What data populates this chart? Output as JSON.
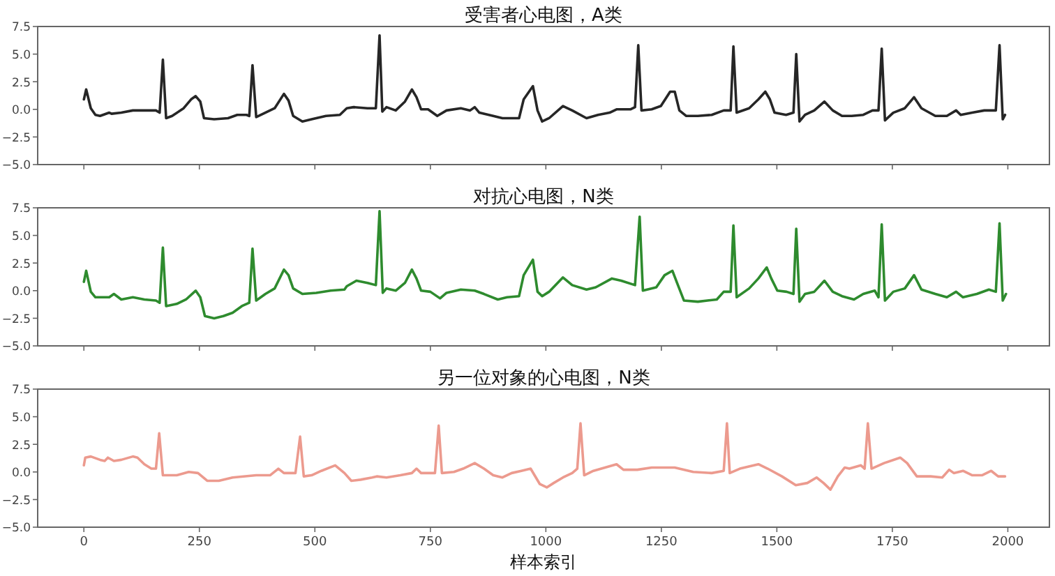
{
  "chart_data": [
    {
      "type": "line",
      "title": "受害者心电图，A类",
      "tick_labels": "y",
      "xlim": [
        -100,
        2090
      ],
      "ylim": [
        -5,
        7.5
      ],
      "xticks": [
        0,
        250,
        500,
        750,
        1000,
        1250,
        1500,
        1750,
        2000
      ],
      "yticks": [
        {
          "value": -5,
          "label": "−5.0"
        },
        {
          "value": -2.5,
          "label": "−2.5"
        },
        {
          "value": 0,
          "label": "0.0"
        },
        {
          "value": 2.5,
          "label": "2.5"
        },
        {
          "value": 5,
          "label": "5.0"
        },
        {
          "value": 7.5,
          "label": "7.5"
        }
      ],
      "x": [
        0,
        5,
        15,
        25,
        35,
        55,
        60,
        81,
        106,
        121,
        156,
        164,
        171,
        178,
        191,
        216,
        232,
        242,
        252,
        260,
        282,
        312,
        332,
        352,
        358,
        365,
        373,
        388,
        413,
        433,
        443,
        453,
        473,
        493,
        524,
        554,
        569,
        584,
        614,
        632,
        640,
        646,
        655,
        675,
        695,
        710,
        720,
        730,
        745,
        765,
        785,
        816,
        836,
        846,
        856,
        886,
        906,
        942,
        952,
        972,
        982,
        992,
        1007,
        1037,
        1057,
        1088,
        1113,
        1138,
        1153,
        1183,
        1193,
        1200,
        1207,
        1229,
        1249,
        1269,
        1279,
        1289,
        1304,
        1329,
        1359,
        1385,
        1400,
        1406,
        1413,
        1440,
        1460,
        1475,
        1485,
        1495,
        1520,
        1536,
        1542,
        1549,
        1561,
        1581,
        1603,
        1621,
        1641,
        1662,
        1687,
        1707,
        1720,
        1727,
        1734,
        1752,
        1777,
        1797,
        1813,
        1843,
        1868,
        1888,
        1898,
        1923,
        1949,
        1974,
        1982,
        1989,
        1994
      ],
      "series": [
        {
          "color": "#262626",
          "values": [
            0.9,
            1.8,
            0.1,
            -0.5,
            -0.6,
            -0.3,
            -0.4,
            -0.3,
            -0.1,
            -0.1,
            -0.1,
            -0.3,
            4.5,
            -0.8,
            -0.6,
            0.1,
            0.9,
            1.2,
            0.7,
            -0.8,
            -0.9,
            -0.8,
            -0.5,
            -0.5,
            -0.6,
            4.0,
            -0.7,
            -0.4,
            0.1,
            1.4,
            0.8,
            -0.6,
            -1.1,
            -0.9,
            -0.6,
            -0.5,
            0.1,
            0.2,
            0.1,
            0.1,
            6.7,
            -0.2,
            0.2,
            -0.1,
            0.7,
            1.8,
            1.1,
            0.0,
            0.0,
            -0.6,
            -0.1,
            0.1,
            -0.1,
            0.2,
            -0.3,
            -0.6,
            -0.8,
            -0.8,
            0.9,
            2.1,
            -0.1,
            -1.1,
            -0.8,
            0.3,
            -0.1,
            -0.8,
            -0.5,
            -0.3,
            0.0,
            0.0,
            0.2,
            5.8,
            -0.1,
            0.0,
            0.3,
            1.6,
            1.6,
            -0.1,
            -0.6,
            -0.6,
            -0.5,
            -0.1,
            -0.1,
            5.7,
            -0.3,
            0.1,
            0.9,
            1.6,
            0.9,
            -0.3,
            -0.5,
            -0.3,
            5.0,
            -1.1,
            -0.5,
            -0.1,
            0.7,
            -0.1,
            -0.6,
            -0.6,
            -0.5,
            -0.1,
            -0.1,
            5.5,
            -1.0,
            -0.3,
            0.1,
            1.1,
            0.1,
            -0.6,
            -0.6,
            -0.1,
            -0.5,
            -0.3,
            -0.1,
            -0.1,
            5.8,
            -0.9,
            -0.5
          ]
        }
      ]
    },
    {
      "type": "line",
      "title": "对抗心电图，N类",
      "tick_labels": "y",
      "xlim": [
        -100,
        2090
      ],
      "ylim": [
        -5,
        7.5
      ],
      "xticks": [
        0,
        250,
        500,
        750,
        1000,
        1250,
        1500,
        1750,
        2000
      ],
      "yticks": [
        {
          "value": -5,
          "label": "−5.0"
        },
        {
          "value": -2.5,
          "label": "−2.5"
        },
        {
          "value": 0,
          "label": "0.0"
        },
        {
          "value": 2.5,
          "label": "2.5"
        },
        {
          "value": 5,
          "label": "5.0"
        },
        {
          "value": 7.5,
          "label": "7.5"
        }
      ],
      "x": [
        0,
        5,
        15,
        25,
        55,
        65,
        81,
        106,
        131,
        156,
        164,
        171,
        178,
        201,
        221,
        242,
        252,
        262,
        282,
        302,
        322,
        342,
        358,
        365,
        373,
        393,
        413,
        433,
        443,
        453,
        473,
        503,
        534,
        564,
        569,
        590,
        614,
        632,
        640,
        647,
        655,
        675,
        695,
        710,
        720,
        730,
        750,
        771,
        785,
        816,
        846,
        866,
        896,
        916,
        942,
        952,
        972,
        982,
        992,
        1007,
        1037,
        1057,
        1088,
        1108,
        1143,
        1163,
        1193,
        1203,
        1210,
        1239,
        1257,
        1274,
        1284,
        1299,
        1329,
        1370,
        1385,
        1400,
        1406,
        1413,
        1440,
        1460,
        1478,
        1488,
        1501,
        1521,
        1536,
        1542,
        1549,
        1561,
        1581,
        1603,
        1621,
        1641,
        1667,
        1687,
        1712,
        1720,
        1727,
        1734,
        1752,
        1777,
        1797,
        1813,
        1843,
        1868,
        1888,
        1903,
        1933,
        1959,
        1974,
        1982,
        1989,
        1996
      ],
      "series": [
        {
          "color": "#2e8b2e",
          "values": [
            0.8,
            1.8,
            -0.1,
            -0.6,
            -0.6,
            -0.3,
            -0.8,
            -0.6,
            -0.8,
            -0.9,
            -1.1,
            3.9,
            -1.4,
            -1.2,
            -0.8,
            0.0,
            -0.6,
            -2.3,
            -2.5,
            -2.3,
            -2.0,
            -1.4,
            -1.1,
            3.8,
            -0.9,
            -0.3,
            0.2,
            1.9,
            1.4,
            0.2,
            -0.3,
            -0.2,
            0.0,
            0.1,
            0.4,
            0.9,
            0.7,
            0.5,
            7.2,
            -0.2,
            0.2,
            0.0,
            0.7,
            1.9,
            1.1,
            0.0,
            -0.1,
            -0.7,
            -0.2,
            0.1,
            0.0,
            -0.3,
            -0.8,
            -0.6,
            -0.5,
            1.4,
            2.8,
            -0.1,
            -0.5,
            -0.1,
            1.2,
            0.5,
            0.1,
            0.3,
            1.1,
            0.9,
            0.5,
            6.7,
            0.0,
            0.3,
            1.4,
            1.8,
            0.7,
            -0.9,
            -1.0,
            -0.8,
            -0.1,
            -0.1,
            5.9,
            -0.6,
            0.2,
            1.1,
            2.1,
            1.1,
            0.0,
            -0.1,
            -0.3,
            5.6,
            -1.0,
            -0.3,
            -0.1,
            0.9,
            -0.1,
            -0.5,
            -0.8,
            -0.3,
            0.0,
            -0.6,
            6.0,
            -0.9,
            -0.1,
            0.2,
            1.4,
            0.1,
            -0.3,
            -0.6,
            -0.1,
            -0.6,
            -0.3,
            0.1,
            -0.1,
            6.1,
            -0.9,
            -0.3
          ]
        }
      ]
    },
    {
      "type": "line",
      "title": "另一位对象的心电图，N类",
      "xlabel": "样本索引",
      "xlim": [
        -100,
        2090
      ],
      "ylim": [
        -5,
        7.5
      ],
      "xticks": [
        0,
        250,
        500,
        750,
        1000,
        1250,
        1500,
        1750,
        2000
      ],
      "yticks": [
        {
          "value": -5,
          "label": "−5.0"
        },
        {
          "value": -2.5,
          "label": "−2.5"
        },
        {
          "value": 0,
          "label": "0.0"
        },
        {
          "value": 2.5,
          "label": "2.5"
        },
        {
          "value": 5,
          "label": "5.0"
        },
        {
          "value": 7.5,
          "label": "7.5"
        }
      ],
      "x": [
        0,
        3,
        15,
        35,
        45,
        52,
        65,
        81,
        106,
        116,
        131,
        146,
        156,
        163,
        171,
        201,
        227,
        247,
        267,
        292,
        322,
        373,
        403,
        421,
        433,
        458,
        468,
        476,
        493,
        514,
        544,
        564,
        579,
        599,
        624,
        634,
        655,
        685,
        710,
        720,
        730,
        760,
        768,
        775,
        801,
        821,
        846,
        866,
        886,
        906,
        926,
        947,
        967,
        987,
        1002,
        1017,
        1037,
        1057,
        1068,
        1075,
        1083,
        1103,
        1128,
        1153,
        1168,
        1198,
        1229,
        1279,
        1319,
        1359,
        1385,
        1392,
        1398,
        1420,
        1460,
        1480,
        1511,
        1541,
        1566,
        1586,
        1601,
        1616,
        1632,
        1647,
        1657,
        1682,
        1690,
        1697,
        1705,
        1732,
        1767,
        1782,
        1803,
        1833,
        1858,
        1873,
        1883,
        1903,
        1923,
        1944,
        1964,
        1979,
        1994
      ],
      "series": [
        {
          "color": "#ec9a8e",
          "values": [
            0.6,
            1.3,
            1.4,
            1.1,
            1.0,
            1.3,
            1.0,
            1.1,
            1.4,
            1.3,
            0.7,
            0.3,
            0.3,
            3.5,
            -0.3,
            -0.3,
            0.0,
            -0.1,
            -0.8,
            -0.8,
            -0.5,
            -0.3,
            -0.3,
            0.3,
            -0.1,
            -0.1,
            3.2,
            -0.4,
            -0.3,
            0.1,
            0.6,
            -0.1,
            -0.8,
            -0.7,
            -0.5,
            -0.4,
            -0.5,
            -0.3,
            -0.1,
            0.3,
            -0.1,
            -0.1,
            4.2,
            -0.1,
            0.0,
            0.3,
            0.8,
            0.3,
            -0.3,
            -0.5,
            -0.1,
            0.1,
            0.3,
            -1.1,
            -1.4,
            -1.0,
            -0.5,
            -0.1,
            0.3,
            4.4,
            -0.3,
            0.1,
            0.4,
            0.7,
            0.2,
            0.2,
            0.4,
            0.4,
            0.0,
            -0.1,
            0.1,
            4.4,
            -0.1,
            0.3,
            0.7,
            0.3,
            -0.4,
            -1.2,
            -1.0,
            -0.5,
            -1.0,
            -1.6,
            -0.4,
            0.4,
            0.3,
            0.6,
            0.3,
            4.4,
            0.3,
            0.8,
            1.3,
            0.8,
            -0.4,
            -0.4,
            -0.5,
            0.2,
            -0.1,
            0.1,
            -0.3,
            -0.3,
            0.1,
            -0.4,
            -0.4
          ]
        }
      ]
    }
  ]
}
